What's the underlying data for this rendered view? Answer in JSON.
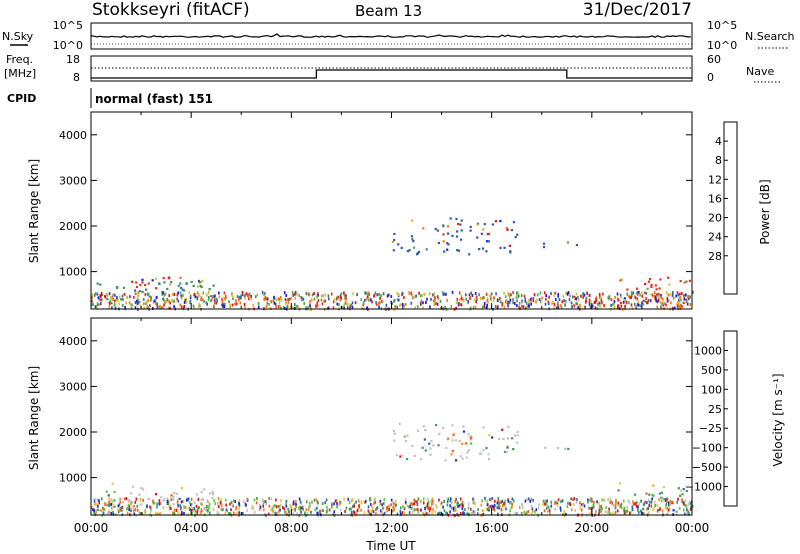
{
  "header": {
    "station": "Stokkseyri (fitACF)",
    "beam": "Beam 13",
    "date": "31/Dec/2017"
  },
  "noise_panel": {
    "left_label": "N.Sky",
    "right_label": "N.Search",
    "left_ticks": [
      "10^5",
      "10^0"
    ],
    "right_ticks": [
      "10^5",
      "10^0"
    ]
  },
  "freq_panel": {
    "left_label_1": "Freq.",
    "left_label_2": "[MHz]",
    "right_label": "Nave",
    "left_ticks": [
      "18",
      "8"
    ],
    "right_ticks": [
      "60",
      "0"
    ],
    "step_segments": [
      {
        "start_hour": 0,
        "end_hour": 9,
        "level": "low"
      },
      {
        "start_hour": 9,
        "end_hour": 19,
        "level": "high"
      },
      {
        "start_hour": 19,
        "end_hour": 24,
        "level": "low"
      }
    ]
  },
  "cpid": {
    "label": "CPID",
    "value": "normal (fast) 151"
  },
  "chart_data": [
    {
      "type": "heatmap",
      "panel": "power",
      "ylabel": "Slant Range [km]",
      "xlim": [
        0,
        24
      ],
      "ylim": [
        180,
        4500
      ],
      "yticks": [
        "1000",
        "2000",
        "3000",
        "4000"
      ],
      "colorbar_label": "Power [dB]",
      "colorbar_ticks": [
        "4",
        "8",
        "12",
        "16",
        "20",
        "24",
        "28"
      ],
      "colorbar_colors": [
        "#1a1ae6",
        "#2d5aa8",
        "#3d8c6e",
        "#4fb04f",
        "#c8c83c",
        "#f0a020",
        "#f07020",
        "#e83020",
        "#e01010"
      ],
      "echo_regions": [
        {
          "t0": 0.0,
          "t1": 5.0,
          "r0": 300,
          "r1": 900,
          "dominant": "#3d8c6e"
        },
        {
          "t0": 1.0,
          "t1": 3.5,
          "r0": 600,
          "r1": 900,
          "dominant": "#e83020"
        },
        {
          "t0": 12.0,
          "t1": 17.0,
          "r0": 1400,
          "r1": 2200,
          "dominant": "#2d5aa8"
        },
        {
          "t0": 18.0,
          "t1": 19.5,
          "r0": 1550,
          "r1": 1700,
          "dominant": "#2d5aa8"
        },
        {
          "t0": 21.0,
          "t1": 24.0,
          "r0": 250,
          "r1": 900,
          "dominant": "#e83020"
        }
      ]
    },
    {
      "type": "heatmap",
      "panel": "velocity",
      "xlabel": "Time UT",
      "ylabel": "Slant Range [km]",
      "xlim": [
        0,
        24
      ],
      "ylim": [
        180,
        4500
      ],
      "yticks": [
        "1000",
        "2000",
        "3000",
        "4000"
      ],
      "xticks": [
        "00:00",
        "04:00",
        "08:00",
        "12:00",
        "16:00",
        "20:00",
        "00:00"
      ],
      "colorbar_label": "Velocity [m s⁻¹]",
      "colorbar_ticks": [
        "1000",
        "500",
        "100",
        "25",
        "−25",
        "−100",
        "−500",
        "−1000"
      ],
      "colorbar_colors": [
        "#1a28c8",
        "#2a64b0",
        "#3c9a5a",
        "#5cc83c",
        "#c0c0c0",
        "#f0c040",
        "#f08c20",
        "#f05a20",
        "#e01010"
      ],
      "echo_regions": [
        {
          "t0": 0.0,
          "t1": 5.0,
          "r0": 300,
          "r1": 900,
          "dominant": "#c0c0c0"
        },
        {
          "t0": 0.0,
          "t1": 1.2,
          "r0": 300,
          "r1": 650,
          "dominant": "#f08c20"
        },
        {
          "t0": 12.0,
          "t1": 17.0,
          "r0": 1400,
          "r1": 2200,
          "dominant": "#c0c0c0"
        },
        {
          "t0": 14.2,
          "t1": 15.2,
          "r0": 1600,
          "r1": 2000,
          "dominant": "#f08c20"
        },
        {
          "t0": 18.0,
          "t1": 19.5,
          "r0": 1550,
          "r1": 1700,
          "dominant": "#c0c0c0"
        },
        {
          "t0": 21.0,
          "t1": 24.0,
          "r0": 250,
          "r1": 900,
          "dominant": "#3c9a5a"
        }
      ]
    }
  ]
}
